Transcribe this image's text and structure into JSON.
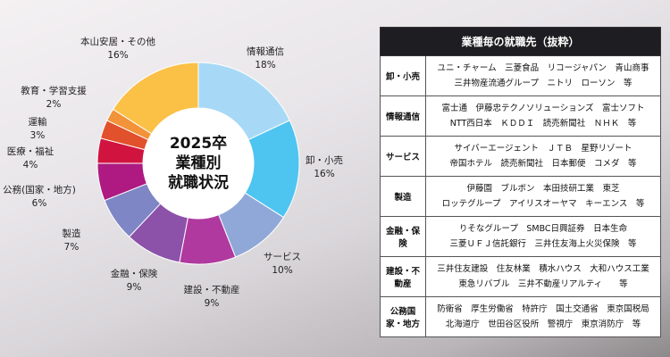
{
  "chart_data": {
    "type": "donut",
    "center_label": [
      "2025卒",
      "業種別",
      "就職状況"
    ],
    "categories": [
      "情報通信",
      "卸・小売",
      "サービス",
      "建設・不動産",
      "金融・保険",
      "製造",
      "公務(国家・地方)",
      "医療・福祉",
      "運輸",
      "教育・学習支援",
      "本山安居・その他"
    ],
    "values": [
      18,
      16,
      10,
      9,
      9,
      7,
      6,
      4,
      3,
      2,
      16
    ],
    "value_labels": [
      "18%",
      "16%",
      "10%",
      "9%",
      "9%",
      "7%",
      "6%",
      "4%",
      "3%",
      "2%",
      "16%"
    ],
    "colors": [
      "#a7d9f6",
      "#4ec4f1",
      "#8fa8d8",
      "#b0399f",
      "#8c52aa",
      "#7e86c5",
      "#ae1a82",
      "#d1143f",
      "#e1512b",
      "#f29239",
      "#fbc046"
    ]
  },
  "table": {
    "header": "業種毎の就職先（抜粋）",
    "rows": [
      {
        "category": "卸・小売",
        "companies": [
          "ユニ・チャーム　三菱食品　リコージャパン　青山商事",
          "三井物産流通グループ　ニトリ　ローソン　等"
        ]
      },
      {
        "category": "情報通信",
        "companies": [
          "富士通　伊藤忠テクノソリューションズ　富士ソフト",
          "NTT西日本　ＫＤＤＩ　読売新聞社　ＮＨＫ　等"
        ]
      },
      {
        "category": "サービス",
        "companies": [
          "サイバーエージェント　ＪＴＢ　星野リゾート",
          "帝国ホテル　読売新聞社　日本郵便　コメダ　等"
        ]
      },
      {
        "category": "製造",
        "companies": [
          "伊藤園　ブルボン　本田技研工業　東芝",
          "ロッテグループ　アイリスオーヤマ　キーエンス　等"
        ]
      },
      {
        "category": "金融・保険",
        "companies": [
          "りそなグループ　SMBC日興証券　日本生命",
          "三菱ＵＦＪ信託銀行　三井住友海上火災保険　等"
        ]
      },
      {
        "category": "建設・不動産",
        "companies": [
          "三井住友建設　住友林業　積水ハウス　大和ハウス工業",
          "東急リバブル　三井不動産リアルティ　　等"
        ]
      },
      {
        "category": "公務国家・地方",
        "companies": [
          "防衛省　厚生労働省　特許庁　国土交通省　東京国税局",
          "北海道庁　世田谷区役所　警視庁　東京消防庁　等"
        ]
      }
    ]
  }
}
